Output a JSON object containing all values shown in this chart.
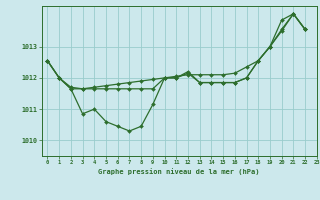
{
  "title": "Graphe pression niveau de la mer (hPa)",
  "background_color": "#cce8ec",
  "grid_color": "#99cccc",
  "line_color": "#2d6e2d",
  "marker_color": "#2d6e2d",
  "xlim": [
    -0.5,
    23
  ],
  "ylim": [
    1009.5,
    1014.3
  ],
  "yticks": [
    1010,
    1011,
    1012,
    1013
  ],
  "xticks": [
    0,
    1,
    2,
    3,
    4,
    5,
    6,
    7,
    8,
    9,
    10,
    11,
    12,
    13,
    14,
    15,
    16,
    17,
    18,
    19,
    20,
    21,
    22,
    23
  ],
  "seriesA_y": [
    1012.55,
    1012.0,
    1011.65,
    1010.85,
    1011.0,
    1010.6,
    1010.45,
    1010.3,
    1010.45,
    1011.15,
    1012.0,
    1012.0,
    1012.2,
    1011.85,
    1011.85,
    1011.85,
    1011.85,
    1012.0,
    1012.55,
    1013.0,
    1013.85,
    1014.05,
    1013.55
  ],
  "seriesB_y": [
    1012.55,
    1012.0,
    1011.7,
    1011.65,
    1011.65,
    1011.65,
    1011.65,
    1011.65,
    1011.65,
    1011.65,
    1012.0,
    1012.0,
    1012.15,
    1011.85,
    1011.85,
    1011.85,
    1011.85,
    1012.0,
    1012.55,
    1013.0,
    1013.55,
    1014.05,
    1013.55
  ],
  "seriesC_y": [
    1012.55,
    1012.0,
    1011.65,
    1011.65,
    1011.7,
    1011.75,
    1011.8,
    1011.85,
    1011.9,
    1011.95,
    1012.0,
    1012.05,
    1012.1,
    1012.1,
    1012.1,
    1012.1,
    1012.15,
    1012.35,
    1012.55,
    1013.0,
    1013.5,
    1014.05,
    1013.55
  ]
}
